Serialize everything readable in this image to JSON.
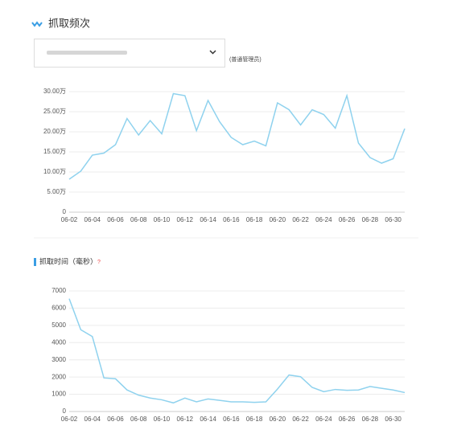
{
  "header": {
    "title": "抓取频次",
    "role": "(普通管理员)"
  },
  "chart_data": [
    {
      "type": "line",
      "color": "#8fd2ee",
      "grid": true,
      "categories": [
        "06-02",
        null,
        "06-04",
        null,
        "06-06",
        null,
        "06-08",
        null,
        "06-10",
        null,
        "06-12",
        null,
        "06-14",
        null,
        "06-16",
        null,
        "06-18",
        null,
        "06-20",
        null,
        "06-22",
        null,
        "06-24",
        null,
        "06-26",
        null,
        "06-28",
        null,
        "06-30",
        null
      ],
      "values": [
        8.2,
        10.2,
        14.2,
        14.7,
        16.8,
        23.3,
        19.2,
        22.8,
        19.5,
        29.5,
        29.0,
        20.3,
        27.8,
        22.5,
        18.6,
        16.8,
        17.7,
        16.5,
        27.2,
        25.5,
        21.7,
        25.5,
        24.3,
        20.9,
        29.0,
        17.2,
        13.6,
        12.2,
        13.3,
        20.8
      ],
      "ylim": [
        0,
        30
      ],
      "yticks": [
        0,
        {
          "value": 5,
          "label": "5.00万"
        },
        {
          "value": 10,
          "label": "10.00万"
        },
        {
          "value": 15,
          "label": "15.00万"
        },
        {
          "value": 20,
          "label": "20.00万"
        },
        {
          "value": 25,
          "label": "25.00万"
        },
        {
          "value": 30,
          "label": "30.00万"
        }
      ]
    },
    {
      "type": "line",
      "title": "抓取时间（毫秒）",
      "help": "?",
      "color": "#8fd2ee",
      "grid": true,
      "categories": [
        "06-02",
        null,
        "06-04",
        null,
        "06-06",
        null,
        "06-08",
        null,
        "06-10",
        null,
        "06-12",
        null,
        "06-14",
        null,
        "06-16",
        null,
        "06-18",
        null,
        "06-20",
        null,
        "06-22",
        null,
        "06-24",
        null,
        "06-26",
        null,
        "06-28",
        null,
        "06-30",
        null
      ],
      "values": [
        6550,
        4750,
        4350,
        1950,
        1900,
        1250,
        950,
        780,
        680,
        500,
        780,
        560,
        730,
        650,
        560,
        560,
        530,
        560,
        1300,
        2120,
        2020,
        1400,
        1150,
        1280,
        1230,
        1250,
        1450,
        1350,
        1250,
        1100
      ],
      "ylim": [
        0,
        7000
      ],
      "yticks": [
        0,
        1000,
        2000,
        3000,
        4000,
        5000,
        6000,
        7000
      ]
    }
  ]
}
